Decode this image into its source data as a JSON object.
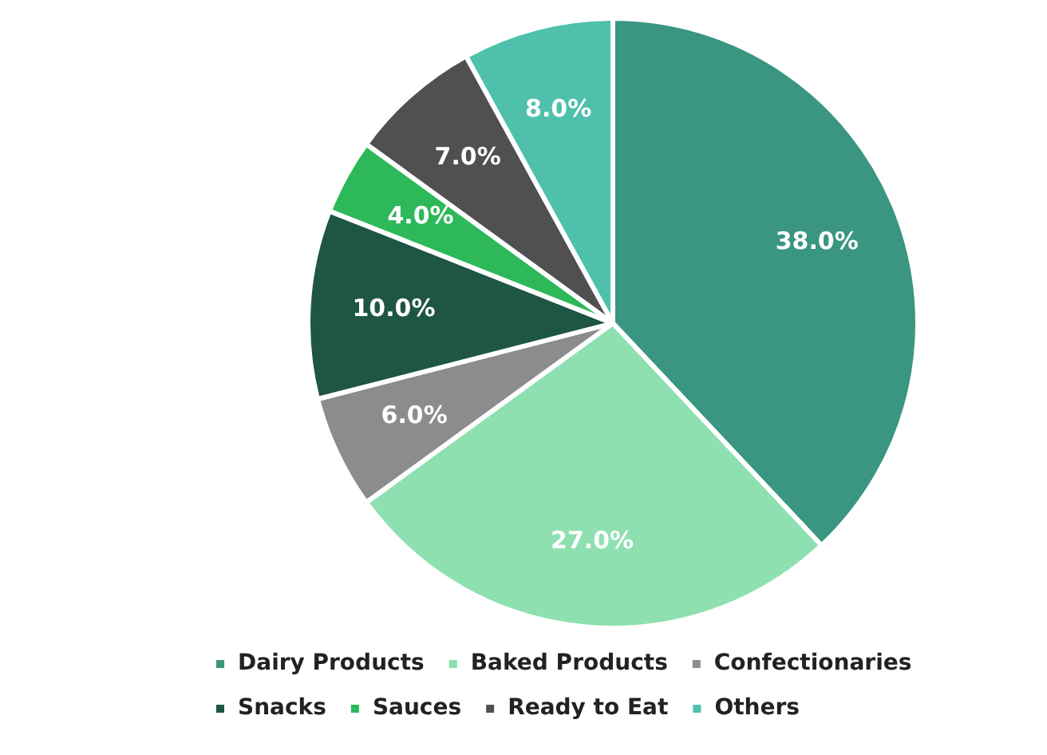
{
  "chart_data": {
    "type": "pie",
    "categories": [
      "Dairy Products",
      "Baked Products",
      "Confectionaries",
      "Snacks",
      "Sauces",
      "Ready to Eat",
      "Others"
    ],
    "values": [
      38,
      27,
      6,
      10,
      4,
      7,
      8
    ],
    "value_labels": [
      "38.0%",
      "27.0%",
      "6.0%",
      "10.0%",
      "4.0%",
      "7.0%",
      "8.0%"
    ],
    "colors": [
      "#3a9680",
      "#8ee0b0",
      "#8c8c8c",
      "#1e5545",
      "#2db85a",
      "#505050",
      "#4fc0ac"
    ],
    "legend": "bottom"
  }
}
